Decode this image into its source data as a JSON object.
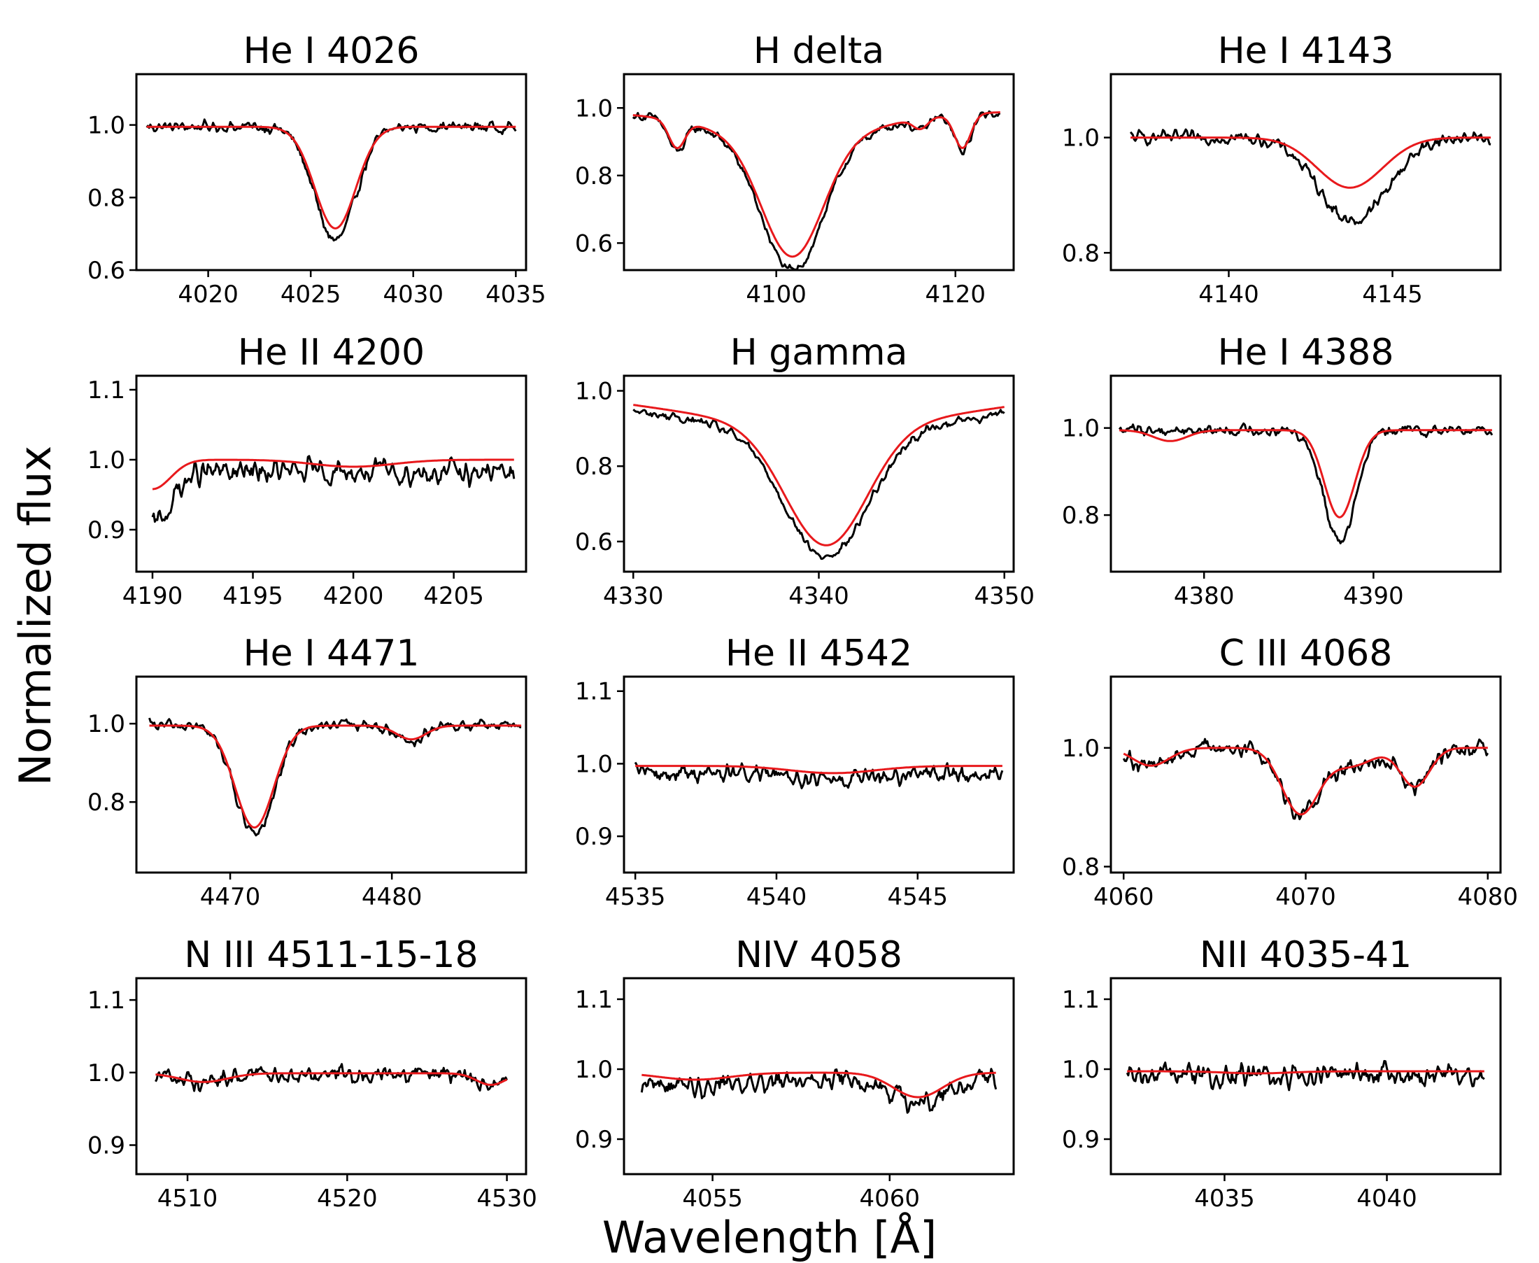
{
  "figure": {
    "ylabel": "Normalized flux",
    "xlabel": "Wavelength [Å]",
    "colors": {
      "observed": "#000000",
      "model": "#e8191c"
    }
  },
  "chart_data": [
    {
      "type": "line",
      "title": "He I 4026",
      "xlim": [
        4016.5,
        4035.5
      ],
      "ylim": [
        0.6,
        1.14
      ],
      "xticks": [
        4020,
        4025,
        4030,
        4035
      ],
      "yticks": [
        0.6,
        0.8,
        1.0
      ],
      "ytick_labels": [
        "0.6",
        "0.8",
        "1.0"
      ],
      "xrange": [
        4017,
        4035
      ],
      "continuum": 0.995,
      "noise": 0.014,
      "lines": [
        {
          "center": 4026.2,
          "depth": 0.28,
          "width": 1.0
        }
      ],
      "obs_scale": 1.12,
      "series": [
        {
          "values_desc": "observed"
        },
        {
          "values_desc": "model"
        }
      ]
    },
    {
      "type": "line",
      "title": "H delta",
      "xlim": [
        4083,
        4126.5
      ],
      "ylim": [
        0.52,
        1.1
      ],
      "xticks": [
        4100,
        4120
      ],
      "yticks": [
        0.6,
        0.8,
        1.0
      ],
      "ytick_labels": [
        "0.6",
        "0.8",
        "1.0"
      ],
      "xrange": [
        4084,
        4125
      ],
      "continuum": 0.99,
      "noise": 0.012,
      "lines": [
        {
          "center": 4101.8,
          "depth": 0.35,
          "width": 3.4,
          "wing": 0.08,
          "wingwidth": 9.0
        },
        {
          "center": 4088.9,
          "depth": 0.08,
          "width": 0.9
        },
        {
          "center": 4120.8,
          "depth": 0.1,
          "width": 0.9
        },
        {
          "center": 4116.1,
          "depth": 0.03,
          "width": 0.8
        }
      ],
      "obs_scale": 1.1,
      "series": [
        {
          "values_desc": "observed"
        },
        {
          "values_desc": "model"
        }
      ]
    },
    {
      "type": "line",
      "title": "He I 4143",
      "xlim": [
        4136.4,
        4148.3
      ],
      "ylim": [
        0.77,
        1.11
      ],
      "xticks": [
        4140,
        4145
      ],
      "yticks": [
        0.8,
        1.0
      ],
      "ytick_labels": [
        "0.8",
        "1.0"
      ],
      "xrange": [
        4137,
        4148
      ],
      "continuum": 1.0,
      "noise": 0.01,
      "lines": [
        {
          "center": 4143.7,
          "depth": 0.087,
          "width": 1.0
        }
      ],
      "obs_lines": [
        {
          "center": 4143.8,
          "depth": 0.145,
          "width": 1.05
        }
      ],
      "obs_scale": 1.0,
      "series": [
        {
          "values_desc": "observed"
        },
        {
          "values_desc": "model"
        }
      ]
    },
    {
      "type": "line",
      "title": "He II 4200",
      "xlim": [
        4189.2,
        4208.6
      ],
      "ylim": [
        0.84,
        1.12
      ],
      "xticks": [
        4190,
        4195,
        4200,
        4205
      ],
      "yticks": [
        0.9,
        1.0,
        1.1
      ],
      "ytick_labels": [
        "0.9",
        "1.0",
        "1.1"
      ],
      "xrange": [
        4190,
        4208
      ],
      "continuum": 1.0,
      "noise": 0.016,
      "lines": [
        {
          "center": 4190.0,
          "depth": 0.042,
          "width": 0.9
        },
        {
          "center": 4200.0,
          "depth": 0.01,
          "width": 2.0
        }
      ],
      "obs_lines": [
        {
          "center": 4190.0,
          "depth": 0.075,
          "width": 0.9
        }
      ],
      "obs_offset": -0.018,
      "obs_scale": 1.0,
      "series": [
        {
          "values_desc": "observed"
        },
        {
          "values_desc": "model"
        }
      ]
    },
    {
      "type": "line",
      "title": "H gamma",
      "xlim": [
        4329.5,
        4350.5
      ],
      "ylim": [
        0.52,
        1.04
      ],
      "xticks": [
        4330,
        4340,
        4350
      ],
      "yticks": [
        0.6,
        0.8,
        1.0
      ],
      "ytick_labels": [
        "0.6",
        "0.8",
        "1.0"
      ],
      "xrange": [
        4330,
        4350
      ],
      "continuum": 1.01,
      "noise": 0.011,
      "lines": [
        {
          "center": 4340.4,
          "depth": 0.32,
          "width": 2.2,
          "wing": 0.1,
          "wingwidth": 8.5
        }
      ],
      "obs_scale": 1.04,
      "obs_offset": -0.015,
      "series": [
        {
          "values_desc": "observed"
        },
        {
          "values_desc": "model"
        }
      ]
    },
    {
      "type": "line",
      "title": "He I 4388",
      "xlim": [
        4374.5,
        4397.5
      ],
      "ylim": [
        0.67,
        1.12
      ],
      "xticks": [
        4380,
        4390
      ],
      "yticks": [
        0.8,
        1.0
      ],
      "ytick_labels": [
        "0.8",
        "1.0"
      ],
      "xrange": [
        4375,
        4397
      ],
      "continuum": 0.995,
      "noise": 0.012,
      "lines": [
        {
          "center": 4388.0,
          "depth": 0.2,
          "width": 0.9
        },
        {
          "center": 4378.0,
          "depth": 0.025,
          "width": 1.0
        }
      ],
      "obs_lines": [
        {
          "center": 4388.0,
          "depth": 0.25,
          "width": 0.95
        }
      ],
      "obs_scale": 1.0,
      "series": [
        {
          "values_desc": "observed"
        },
        {
          "values_desc": "model"
        }
      ]
    },
    {
      "type": "line",
      "title": "He I 4471",
      "xlim": [
        4464.2,
        4488.3
      ],
      "ylim": [
        0.62,
        1.12
      ],
      "xticks": [
        4470,
        4480
      ],
      "yticks": [
        0.8,
        1.0
      ],
      "ytick_labels": [
        "0.8",
        "1.0"
      ],
      "xrange": [
        4465,
        4488
      ],
      "continuum": 0.995,
      "noise": 0.013,
      "lines": [
        {
          "center": 4471.5,
          "depth": 0.26,
          "width": 1.2
        },
        {
          "center": 4481.2,
          "depth": 0.035,
          "width": 0.9
        }
      ],
      "obs_scale": 1.08,
      "series": [
        {
          "values_desc": "observed"
        },
        {
          "values_desc": "model"
        }
      ]
    },
    {
      "type": "line",
      "title": "He II 4542",
      "xlim": [
        4534.6,
        4548.4
      ],
      "ylim": [
        0.85,
        1.12
      ],
      "xticks": [
        4535,
        4540,
        4545
      ],
      "yticks": [
        0.9,
        1.0,
        1.1
      ],
      "ytick_labels": [
        "0.9",
        "1.0",
        "1.1"
      ],
      "xrange": [
        4535,
        4548
      ],
      "continuum": 0.997,
      "noise": 0.012,
      "lines": [
        {
          "center": 4542.0,
          "depth": 0.01,
          "width": 1.5
        }
      ],
      "obs_offset": -0.01,
      "obs_scale": 1.0,
      "series": [
        {
          "values_desc": "observed"
        },
        {
          "values_desc": "model"
        }
      ]
    },
    {
      "type": "line",
      "title": "C III 4068",
      "xlim": [
        4059.3,
        4080.7
      ],
      "ylim": [
        0.79,
        1.12
      ],
      "xticks": [
        4060,
        4070,
        4080
      ],
      "yticks": [
        0.8,
        1.0
      ],
      "ytick_labels": [
        "0.8",
        "1.0"
      ],
      "xrange": [
        4060,
        4080
      ],
      "continuum": 1.0,
      "noise": 0.013,
      "lines": [
        {
          "center": 4069.7,
          "depth": 0.11,
          "width": 1.0
        },
        {
          "center": 4076.0,
          "depth": 0.065,
          "width": 0.8
        },
        {
          "center": 4061.5,
          "depth": 0.03,
          "width": 1.0
        },
        {
          "center": 4072.5,
          "depth": 0.03,
          "width": 1.2
        }
      ],
      "obs_scale": 1.0,
      "series": [
        {
          "values_desc": "observed"
        },
        {
          "values_desc": "model"
        }
      ]
    },
    {
      "type": "line",
      "title": "N III 4511-15-18",
      "xlim": [
        4506.8,
        4531.2
      ],
      "ylim": [
        0.86,
        1.13
      ],
      "xticks": [
        4510,
        4520,
        4530
      ],
      "yticks": [
        0.9,
        1.0,
        1.1
      ],
      "ytick_labels": [
        "0.9",
        "1.0",
        "1.1"
      ],
      "xrange": [
        4508,
        4530
      ],
      "continuum": 0.999,
      "noise": 0.011,
      "lines": [
        {
          "center": 4511.0,
          "depth": 0.012,
          "width": 1.5
        },
        {
          "center": 4529.0,
          "depth": 0.016,
          "width": 0.9
        }
      ],
      "obs_scale": 1.0,
      "series": [
        {
          "values_desc": "observed"
        },
        {
          "values_desc": "model"
        }
      ]
    },
    {
      "type": "line",
      "title": "NIV 4058",
      "xlim": [
        4052.5,
        4063.5
      ],
      "ylim": [
        0.85,
        1.13
      ],
      "xticks": [
        4055,
        4060
      ],
      "yticks": [
        0.9,
        1.0,
        1.1
      ],
      "ytick_labels": [
        "0.9",
        "1.0",
        "1.1"
      ],
      "xrange": [
        4053,
        4063
      ],
      "continuum": 0.995,
      "noise": 0.013,
      "lines": [
        {
          "center": 4060.8,
          "depth": 0.035,
          "width": 0.7
        },
        {
          "center": 4054.5,
          "depth": 0.01,
          "width": 1.0
        }
      ],
      "obs_offset": -0.01,
      "obs_scale": 1.0,
      "series": [
        {
          "values_desc": "observed"
        },
        {
          "values_desc": "model"
        }
      ]
    },
    {
      "type": "line",
      "title": "NII 4035-41",
      "xlim": [
        4031.5,
        4043.5
      ],
      "ylim": [
        0.85,
        1.13
      ],
      "xticks": [
        4035,
        4040
      ],
      "yticks": [
        0.9,
        1.0,
        1.1
      ],
      "ytick_labels": [
        "0.9",
        "1.0",
        "1.1"
      ],
      "xrange": [
        4032,
        4043
      ],
      "continuum": 0.997,
      "noise": 0.015,
      "lines": [
        {
          "center": 4036.0,
          "depth": 0.003,
          "width": 1.0
        }
      ],
      "obs_offset": -0.005,
      "obs_scale": 1.0,
      "series": [
        {
          "values_desc": "observed"
        },
        {
          "values_desc": "model"
        }
      ]
    }
  ]
}
